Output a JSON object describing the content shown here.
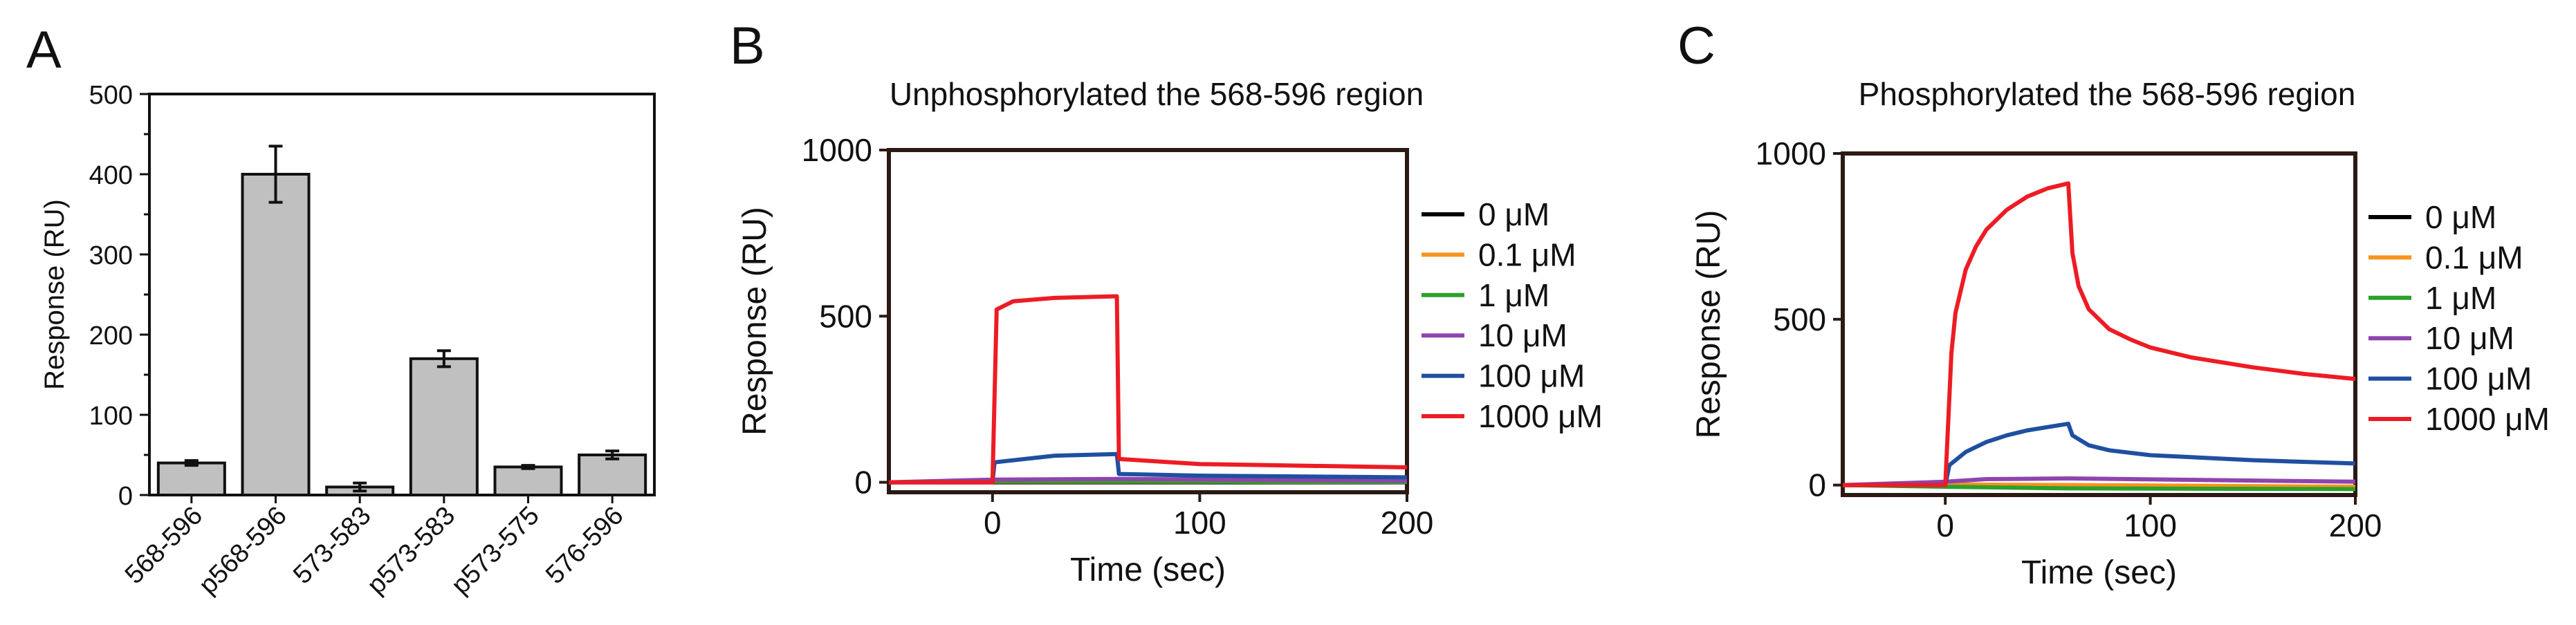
{
  "panels": [
    {
      "letter": "A"
    },
    {
      "letter": "B",
      "title": "Unphosphorylated the 568-596 region"
    },
    {
      "letter": "C",
      "title": "Phosphorylated the 568-596 region"
    }
  ],
  "legend": [
    {
      "label": "0 μM",
      "color": "#000000"
    },
    {
      "label": "0.1 μM",
      "color": "#f7941d"
    },
    {
      "label": "1 μM",
      "color": "#2ca02c"
    },
    {
      "label": "10 μM",
      "color": "#8e44ad"
    },
    {
      "label": "100 μM",
      "color": "#1f4fa0"
    },
    {
      "label": "1000 μM",
      "color": "#ed1c24"
    }
  ],
  "chart_data": [
    {
      "panel": "A",
      "type": "bar",
      "title": "",
      "xlabel": "",
      "ylabel": "Response (RU)",
      "ylim": [
        0,
        500
      ],
      "yticks": [
        "0",
        "100",
        "200",
        "300",
        "400",
        "500"
      ],
      "categories": [
        "568-596",
        "p568-596",
        "573-583",
        "p573-583",
        "p573-575",
        "576-596"
      ],
      "values": [
        40,
        400,
        10,
        170,
        35,
        50
      ],
      "errors": [
        3,
        35,
        5,
        10,
        2,
        5
      ],
      "bar_color": "#c0c0c0"
    },
    {
      "panel": "B",
      "type": "line",
      "title": "Unphosphorylated the 568-596 region",
      "xlabel": "Time (sec)",
      "ylabel": "Response (RU)",
      "xlim": [
        -50,
        200
      ],
      "ylim": [
        -30,
        1000
      ],
      "xticks": [
        "0",
        "100",
        "200"
      ],
      "yticks": [
        "0",
        "500",
        "1000"
      ],
      "series": [
        {
          "name": "0 μM",
          "x": [
            -50,
            0,
            60,
            200
          ],
          "y": [
            0,
            0,
            0,
            0
          ]
        },
        {
          "name": "0.1 μM",
          "x": [
            -50,
            0,
            60,
            200
          ],
          "y": [
            0,
            2,
            2,
            1
          ]
        },
        {
          "name": "1 μM",
          "x": [
            -50,
            0,
            60,
            200
          ],
          "y": [
            0,
            3,
            3,
            1
          ]
        },
        {
          "name": "10 μM",
          "x": [
            -50,
            0,
            60,
            200
          ],
          "y": [
            0,
            8,
            10,
            5
          ]
        },
        {
          "name": "100 μM",
          "x": [
            -50,
            0,
            1,
            30,
            60,
            61,
            100,
            200
          ],
          "y": [
            0,
            0,
            60,
            80,
            85,
            25,
            20,
            15
          ]
        },
        {
          "name": "1000 μM",
          "x": [
            -50,
            0,
            2,
            10,
            30,
            60,
            61,
            100,
            200
          ],
          "y": [
            0,
            0,
            520,
            545,
            555,
            560,
            70,
            55,
            45
          ]
        }
      ]
    },
    {
      "panel": "C",
      "type": "line",
      "title": "Phosphorylated the 568-596 region",
      "xlabel": "Time (sec)",
      "ylabel": "Response (RU)",
      "xlim": [
        -50,
        200
      ],
      "ylim": [
        -30,
        1000
      ],
      "xticks": [
        "0",
        "100",
        "200"
      ],
      "yticks": [
        "0",
        "500",
        "1000"
      ],
      "series": [
        {
          "name": "0 μM",
          "x": [
            -50,
            0,
            60,
            200
          ],
          "y": [
            0,
            0,
            -5,
            -10
          ]
        },
        {
          "name": "0.1 μM",
          "x": [
            -50,
            0,
            60,
            200
          ],
          "y": [
            0,
            2,
            0,
            -5
          ]
        },
        {
          "name": "1 μM",
          "x": [
            -50,
            0,
            60,
            200
          ],
          "y": [
            0,
            -5,
            -10,
            -12
          ]
        },
        {
          "name": "10 μM",
          "x": [
            -50,
            0,
            20,
            60,
            200
          ],
          "y": [
            0,
            10,
            18,
            20,
            10
          ]
        },
        {
          "name": "100 μM",
          "x": [
            -50,
            0,
            2,
            10,
            20,
            30,
            40,
            50,
            60,
            62,
            70,
            80,
            100,
            150,
            200
          ],
          "y": [
            0,
            0,
            60,
            100,
            130,
            150,
            165,
            175,
            185,
            150,
            120,
            105,
            90,
            75,
            65
          ]
        },
        {
          "name": "1000 μM",
          "x": [
            -50,
            0,
            3,
            5,
            10,
            15,
            20,
            30,
            40,
            50,
            60,
            62,
            65,
            70,
            80,
            90,
            100,
            120,
            150,
            175,
            200
          ],
          "y": [
            0,
            0,
            400,
            520,
            650,
            720,
            770,
            830,
            870,
            895,
            910,
            700,
            600,
            530,
            470,
            440,
            415,
            385,
            355,
            335,
            320
          ]
        }
      ]
    }
  ]
}
